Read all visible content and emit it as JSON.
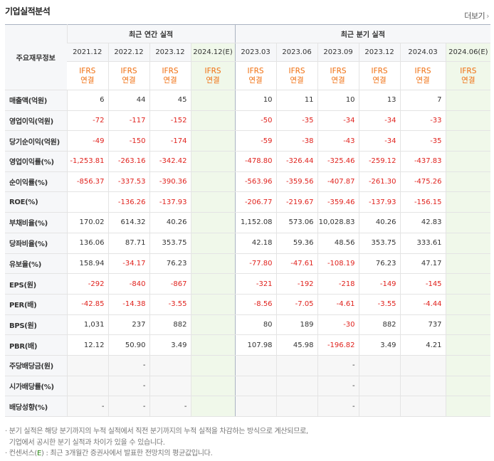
{
  "section_title": "기업실적분석",
  "more_link": "더보기",
  "header": {
    "row_label": "주요재무정보",
    "annual_group": "최근 연간 실적",
    "quarter_group": "최근 분기 실적",
    "annual_periods": [
      "2021.12",
      "2022.12",
      "2023.12",
      "2024.12(E)"
    ],
    "quarter_periods": [
      "2023.03",
      "2023.06",
      "2023.09",
      "2023.12",
      "2024.03",
      "2024.06(E)"
    ],
    "standard_line1": "IFRS",
    "standard_line2": "연결"
  },
  "rows": [
    {
      "label": "매출액(억원)",
      "values": [
        "6",
        "44",
        "45",
        "",
        "10",
        "11",
        "10",
        "13",
        "7",
        ""
      ]
    },
    {
      "label": "영업이익(억원)",
      "values": [
        "-72",
        "-117",
        "-152",
        "",
        "-50",
        "-35",
        "-34",
        "-34",
        "-33",
        ""
      ]
    },
    {
      "label": "당기순이익(억원)",
      "values": [
        "-49",
        "-150",
        "-174",
        "",
        "-59",
        "-38",
        "-43",
        "-34",
        "-35",
        ""
      ]
    },
    {
      "label": "영업이익률(%)",
      "values": [
        "-1,253.81",
        "-263.16",
        "-342.42",
        "",
        "-478.80",
        "-326.44",
        "-325.46",
        "-259.12",
        "-437.83",
        ""
      ]
    },
    {
      "label": "순이익률(%)",
      "values": [
        "-856.37",
        "-337.53",
        "-390.36",
        "",
        "-563.96",
        "-359.56",
        "-407.87",
        "-261.30",
        "-475.26",
        ""
      ]
    },
    {
      "label": "ROE(%)",
      "values": [
        "",
        "-136.26",
        "-137.93",
        "",
        "-206.77",
        "-219.67",
        "-359.46",
        "-137.93",
        "-156.15",
        ""
      ]
    },
    {
      "label": "부채비율(%)",
      "values": [
        "170.02",
        "614.32",
        "40.26",
        "",
        "1,152.08",
        "573.06",
        "10,028.83",
        "40.26",
        "42.83",
        ""
      ]
    },
    {
      "label": "당좌비율(%)",
      "values": [
        "136.06",
        "87.71",
        "353.75",
        "",
        "42.18",
        "59.36",
        "48.56",
        "353.75",
        "333.61",
        ""
      ]
    },
    {
      "label": "유보율(%)",
      "values": [
        "158.94",
        "-34.17",
        "76.23",
        "",
        "-77.80",
        "-47.61",
        "-108.19",
        "76.23",
        "47.17",
        ""
      ]
    },
    {
      "label": "EPS(원)",
      "values": [
        "-292",
        "-840",
        "-867",
        "",
        "-321",
        "-192",
        "-218",
        "-149",
        "-145",
        ""
      ]
    },
    {
      "label": "PER(배)",
      "values": [
        "-42.85",
        "-14.38",
        "-3.55",
        "",
        "-8.56",
        "-7.05",
        "-4.61",
        "-3.55",
        "-4.44",
        ""
      ]
    },
    {
      "label": "BPS(원)",
      "values": [
        "1,031",
        "237",
        "882",
        "",
        "80",
        "189",
        "-30",
        "882",
        "737",
        ""
      ]
    },
    {
      "label": "PBR(배)",
      "values": [
        "12.12",
        "50.90",
        "3.49",
        "",
        "107.98",
        "45.98",
        "-196.82",
        "3.49",
        "4.21",
        ""
      ]
    },
    {
      "label": "주당배당금(원)",
      "values": [
        "",
        "-",
        "",
        "",
        "",
        "",
        "-",
        "",
        "",
        ""
      ]
    },
    {
      "label": "시가배당률(%)",
      "values": [
        "",
        "-",
        "",
        "",
        "",
        "",
        "-",
        "",
        "",
        ""
      ]
    },
    {
      "label": "배당성향(%)",
      "values": [
        "-",
        "-",
        "-",
        "",
        "",
        "",
        "-",
        "",
        "",
        ""
      ]
    }
  ],
  "notes": {
    "line1": "· 분기 실적은 해당 분기까지의 누적 실적에서 직전 분기까지의 누적 실적을 차감하는 방식으로 계산되므로,",
    "line2": "  기업에서 공시한 분기 실적과 차이가 있을 수 있습니다.",
    "line3_prefix": "· 컨센서스(",
    "line3_e": "E",
    "line3_suffix": ") : 최근 3개월간 증권사에서 발표한 전망치의 평균값입니다."
  },
  "colors": {
    "negative": "#e0221d",
    "ifrs": "#f06e0e",
    "estimate_bg": "#f0f8ea"
  }
}
